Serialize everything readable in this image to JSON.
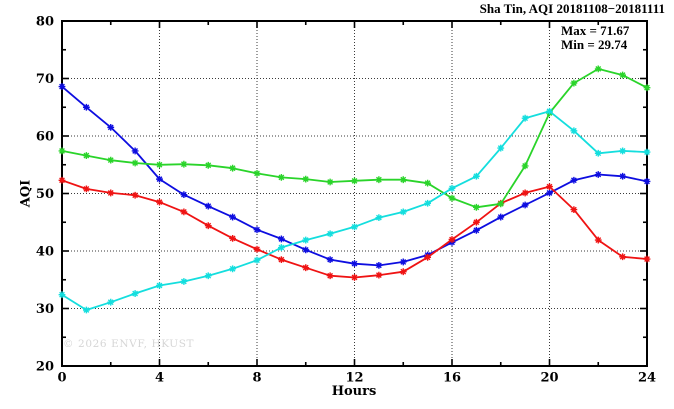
{
  "title": "Sha Tin, AQI 20181108−20181111",
  "annotation": {
    "max_label": "Max = 71.67",
    "min_label": "Min = 29.74"
  },
  "watermark": "© 2026 ENVF, HKUST",
  "chart_data": {
    "type": "line",
    "title": "Sha Tin, AQI 20181108−20181111",
    "xlabel": "Hours",
    "ylabel": "AQI",
    "xlim": [
      0,
      24
    ],
    "ylim": [
      20,
      80
    ],
    "x_ticks": [
      0,
      4,
      8,
      12,
      16,
      20,
      24
    ],
    "y_ticks": [
      20,
      30,
      40,
      50,
      60,
      70,
      80
    ],
    "x_minor_step": 2,
    "y_minor_step": 5,
    "grid": true,
    "legend": "none",
    "annotations": {
      "max": 71.67,
      "min": 29.74
    },
    "x": [
      0,
      1,
      2,
      3,
      4,
      5,
      6,
      7,
      8,
      9,
      10,
      11,
      12,
      13,
      14,
      15,
      16,
      17,
      18,
      19,
      20,
      21,
      22,
      23,
      24
    ],
    "series": [
      {
        "name": "blue",
        "color": "#0d0de0",
        "values": [
          68.6,
          65.0,
          61.5,
          57.4,
          52.5,
          49.8,
          47.8,
          45.9,
          43.7,
          42.1,
          40.2,
          38.5,
          37.8,
          37.5,
          38.1,
          39.3,
          41.5,
          43.6,
          45.9,
          48.0,
          50.1,
          52.3,
          53.3,
          53.0,
          52.1
        ]
      },
      {
        "name": "red",
        "color": "#ef1313",
        "values": [
          52.3,
          50.8,
          50.1,
          49.7,
          48.5,
          46.8,
          44.4,
          42.2,
          40.3,
          38.5,
          37.1,
          35.7,
          35.4,
          35.8,
          36.4,
          38.9,
          42.0,
          45.0,
          48.3,
          50.1,
          51.2,
          47.2,
          41.9,
          39.0,
          38.6
        ]
      },
      {
        "name": "green",
        "color": "#2ad42a",
        "values": [
          57.4,
          56.6,
          55.8,
          55.3,
          55.0,
          55.1,
          54.9,
          54.4,
          53.5,
          52.8,
          52.5,
          52.0,
          52.2,
          52.4,
          52.4,
          51.8,
          49.2,
          47.6,
          48.2,
          54.8,
          64.0,
          69.2,
          71.67,
          70.6,
          68.4
        ]
      },
      {
        "name": "cyan",
        "color": "#14dede",
        "values": [
          32.4,
          29.74,
          31.1,
          32.6,
          34.0,
          34.7,
          35.7,
          36.9,
          38.4,
          40.6,
          41.9,
          43.0,
          44.2,
          45.8,
          46.8,
          48.3,
          50.9,
          53.0,
          57.9,
          63.1,
          64.3,
          60.9,
          57.0,
          57.4,
          57.2
        ]
      }
    ]
  }
}
